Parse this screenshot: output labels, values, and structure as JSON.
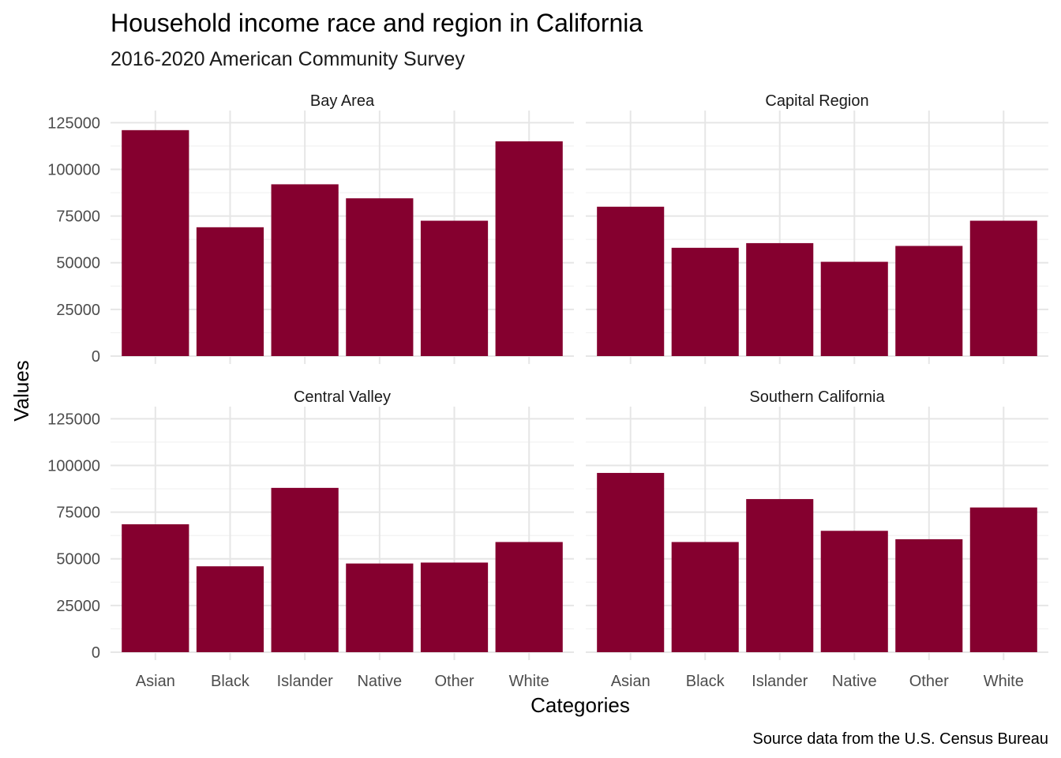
{
  "chart_data": {
    "type": "bar",
    "title": "Household income race and region in California",
    "subtitle": "2016-2020 American Community Survey",
    "xlabel": "Categories",
    "ylabel": "Values",
    "caption": "Source data from the U.S. Census Bureau",
    "categories": [
      "Asian",
      "Black",
      "Islander",
      "Native",
      "Other",
      "White"
    ],
    "ylim": [
      0,
      125000
    ],
    "yticks": [
      "0",
      "25000",
      "50000",
      "75000",
      "100000",
      "125000"
    ],
    "grid": true,
    "bar_color": "#85002f",
    "panels": [
      {
        "name": "Bay Area",
        "values": [
          121000,
          69000,
          92000,
          84500,
          72500,
          115000
        ]
      },
      {
        "name": "Capital Region",
        "values": [
          80000,
          58000,
          60500,
          50500,
          59000,
          72500
        ]
      },
      {
        "name": "Central Valley",
        "values": [
          68500,
          46000,
          88000,
          47500,
          48000,
          59000
        ]
      },
      {
        "name": "Southern California",
        "values": [
          96000,
          59000,
          82000,
          65000,
          60500,
          77500
        ]
      }
    ]
  }
}
